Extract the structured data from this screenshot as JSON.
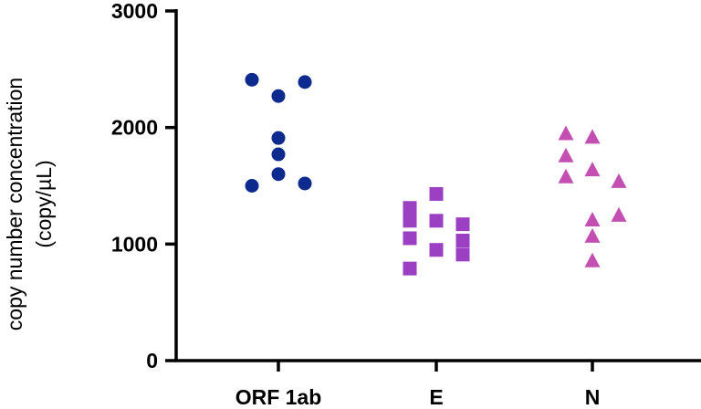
{
  "chart_data": {
    "type": "scatter",
    "title": "",
    "xlabel": "",
    "ylabel_lines": [
      "copy number concentration",
      "(copy/µL)"
    ],
    "categories": [
      "ORF 1ab",
      "E",
      "N"
    ],
    "ylim": [
      0,
      3000
    ],
    "yticks": [
      0,
      1000,
      2000,
      3000
    ],
    "ytick_labels": [
      "0",
      "1000",
      "2000",
      "3000"
    ],
    "grid": false,
    "legend": "none",
    "series": [
      {
        "category": "ORF 1ab",
        "marker": "circle",
        "color": "#0d2a8f",
        "points": [
          {
            "offset": -1,
            "value": 2410
          },
          {
            "offset": 0,
            "value": 2270
          },
          {
            "offset": 1,
            "value": 2390
          },
          {
            "offset": 0,
            "value": 1910
          },
          {
            "offset": 0,
            "value": 1770
          },
          {
            "offset": 0,
            "value": 1600
          },
          {
            "offset": -1,
            "value": 1500
          },
          {
            "offset": 1,
            "value": 1520
          }
        ]
      },
      {
        "category": "E",
        "marker": "square",
        "color": "#9b3fc3",
        "points": [
          {
            "offset": -1,
            "value": 1310
          },
          {
            "offset": -1,
            "value": 1200
          },
          {
            "offset": -1,
            "value": 1050
          },
          {
            "offset": -1,
            "value": 790
          },
          {
            "offset": 0,
            "value": 1430
          },
          {
            "offset": 0,
            "value": 1200
          },
          {
            "offset": 0,
            "value": 950
          },
          {
            "offset": 1,
            "value": 1170
          },
          {
            "offset": 1,
            "value": 1030
          },
          {
            "offset": 1,
            "value": 910
          }
        ]
      },
      {
        "category": "N",
        "marker": "triangle",
        "color": "#c44fb2",
        "points": [
          {
            "offset": -1,
            "value": 1950
          },
          {
            "offset": -1,
            "value": 1760
          },
          {
            "offset": -1,
            "value": 1580
          },
          {
            "offset": 0,
            "value": 1920
          },
          {
            "offset": 0,
            "value": 1640
          },
          {
            "offset": 0,
            "value": 1210
          },
          {
            "offset": 0,
            "value": 1070
          },
          {
            "offset": 0,
            "value": 860
          },
          {
            "offset": 1,
            "value": 1540
          },
          {
            "offset": 1,
            "value": 1250
          }
        ]
      }
    ]
  }
}
